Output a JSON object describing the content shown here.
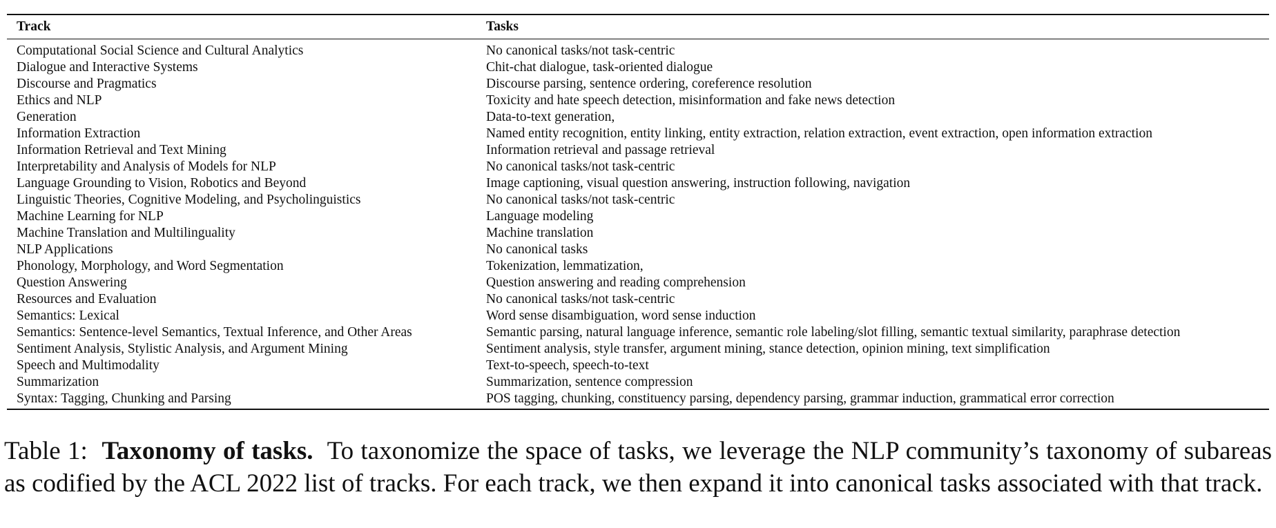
{
  "table": {
    "headers": {
      "track": "Track",
      "tasks": "Tasks"
    },
    "rows": [
      {
        "track": "Computational Social Science and Cultural Analytics",
        "tasks": "No canonical tasks/not task-centric"
      },
      {
        "track": "Dialogue and Interactive Systems",
        "tasks": "Chit-chat dialogue, task-oriented dialogue"
      },
      {
        "track": "Discourse and Pragmatics",
        "tasks": "Discourse parsing, sentence ordering, coreference resolution"
      },
      {
        "track": "Ethics and NLP",
        "tasks": "Toxicity and hate speech detection, misinformation and fake news detection"
      },
      {
        "track": "Generation",
        "tasks": "Data-to-text generation,"
      },
      {
        "track": "Information Extraction",
        "tasks": "Named entity recognition, entity linking, entity extraction, relation extraction, event extraction, open information extraction"
      },
      {
        "track": "Information Retrieval and Text Mining",
        "tasks": "Information retrieval and passage retrieval"
      },
      {
        "track": "Interpretability and Analysis of Models for NLP",
        "tasks": "No canonical tasks/not task-centric"
      },
      {
        "track": "Language Grounding to Vision, Robotics and Beyond",
        "tasks": "Image captioning, visual question answering, instruction following, navigation"
      },
      {
        "track": "Linguistic Theories, Cognitive Modeling, and Psycholinguistics",
        "tasks": "No canonical tasks/not task-centric"
      },
      {
        "track": "Machine Learning for NLP",
        "tasks": "Language modeling"
      },
      {
        "track": "Machine Translation and Multilinguality",
        "tasks": "Machine translation"
      },
      {
        "track": "NLP Applications",
        "tasks": "No canonical tasks"
      },
      {
        "track": "Phonology, Morphology, and Word Segmentation",
        "tasks": "Tokenization, lemmatization,"
      },
      {
        "track": "Question Answering",
        "tasks": "Question answering and reading comprehension"
      },
      {
        "track": "Resources and Evaluation",
        "tasks": "No canonical tasks/not task-centric"
      },
      {
        "track": "Semantics: Lexical",
        "tasks": "Word sense disambiguation, word sense induction"
      },
      {
        "track": "Semantics: Sentence-level Semantics, Textual Inference, and Other Areas",
        "tasks": "Semantic parsing, natural language inference, semantic role labeling/slot filling, semantic textual similarity, paraphrase detection"
      },
      {
        "track": "Sentiment Analysis, Stylistic Analysis, and Argument Mining",
        "tasks": "Sentiment analysis, style transfer, argument mining, stance detection, opinion mining, text simplification"
      },
      {
        "track": "Speech and Multimodality",
        "tasks": "Text-to-speech, speech-to-text"
      },
      {
        "track": "Summarization",
        "tasks": "Summarization, sentence compression"
      },
      {
        "track": "Syntax: Tagging, Chunking and Parsing",
        "tasks": "POS tagging, chunking, constituency parsing, dependency parsing, grammar induction, grammatical error correction"
      }
    ]
  },
  "caption": {
    "label": "Table 1:",
    "title": "Taxonomy of tasks.",
    "text": "To taxonomize the space of tasks, we leverage the NLP community’s taxonomy of subareas as codified by the ACL 2022 list of tracks. For each track, we then expand it into canonical tasks associated with that track."
  }
}
